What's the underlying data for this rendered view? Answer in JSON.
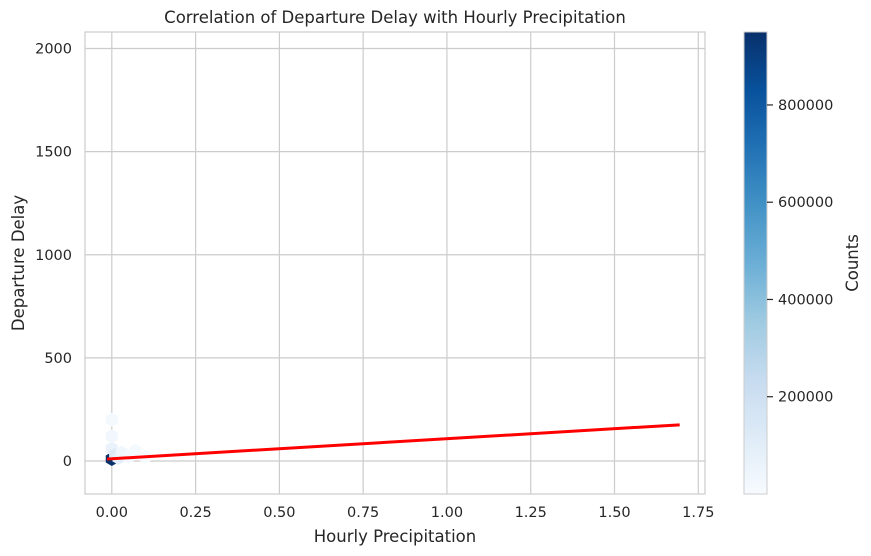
{
  "chart_data": {
    "type": "hexbin",
    "title": "Correlation of Departure Delay with Hourly Precipitation",
    "xlabel": "Hourly Precipitation",
    "ylabel": "Departure Delay",
    "xlim": [
      -0.08,
      1.77
    ],
    "ylim": [
      -160,
      2080
    ],
    "xticks": [
      0.0,
      0.25,
      0.5,
      0.75,
      1.0,
      1.25,
      1.5,
      1.75
    ],
    "xtick_labels": [
      "0.00",
      "0.25",
      "0.50",
      "0.75",
      "1.00",
      "1.25",
      "1.50",
      "1.75"
    ],
    "yticks": [
      0,
      500,
      1000,
      1500,
      2000
    ],
    "ytick_labels": [
      "0",
      "500",
      "1000",
      "1500",
      "2000"
    ],
    "grid": true,
    "colorbar": {
      "label": "Counts",
      "range": [
        0,
        950000
      ],
      "ticks": [
        200000,
        400000,
        600000,
        800000
      ],
      "tick_labels": [
        "200000",
        "400000",
        "600000",
        "800000"
      ],
      "colormap": "Blues"
    },
    "hexbins": [
      {
        "x": 0.0,
        "y": 10,
        "count": 950000
      },
      {
        "x": 0.0,
        "y": 60,
        "count": 60000
      },
      {
        "x": 0.0,
        "y": 120,
        "count": 30000
      },
      {
        "x": 0.0,
        "y": 200,
        "count": 15000
      },
      {
        "x": 0.01,
        "y": 30,
        "count": 120000
      },
      {
        "x": 0.02,
        "y": 15,
        "count": 90000
      },
      {
        "x": 0.03,
        "y": 40,
        "count": 40000
      },
      {
        "x": 0.05,
        "y": 20,
        "count": 25000
      },
      {
        "x": 0.07,
        "y": 50,
        "count": 12000
      },
      {
        "x": 0.1,
        "y": 20,
        "count": 8000
      }
    ],
    "regression_line": {
      "color": "#ff0000",
      "points": [
        {
          "x": -0.01,
          "y": 10
        },
        {
          "x": 1.69,
          "y": 175
        }
      ]
    },
    "colors": {
      "low": "#f7fbff",
      "high": "#08306b",
      "grid": "#cccccc",
      "regression": "#ff0000"
    }
  }
}
